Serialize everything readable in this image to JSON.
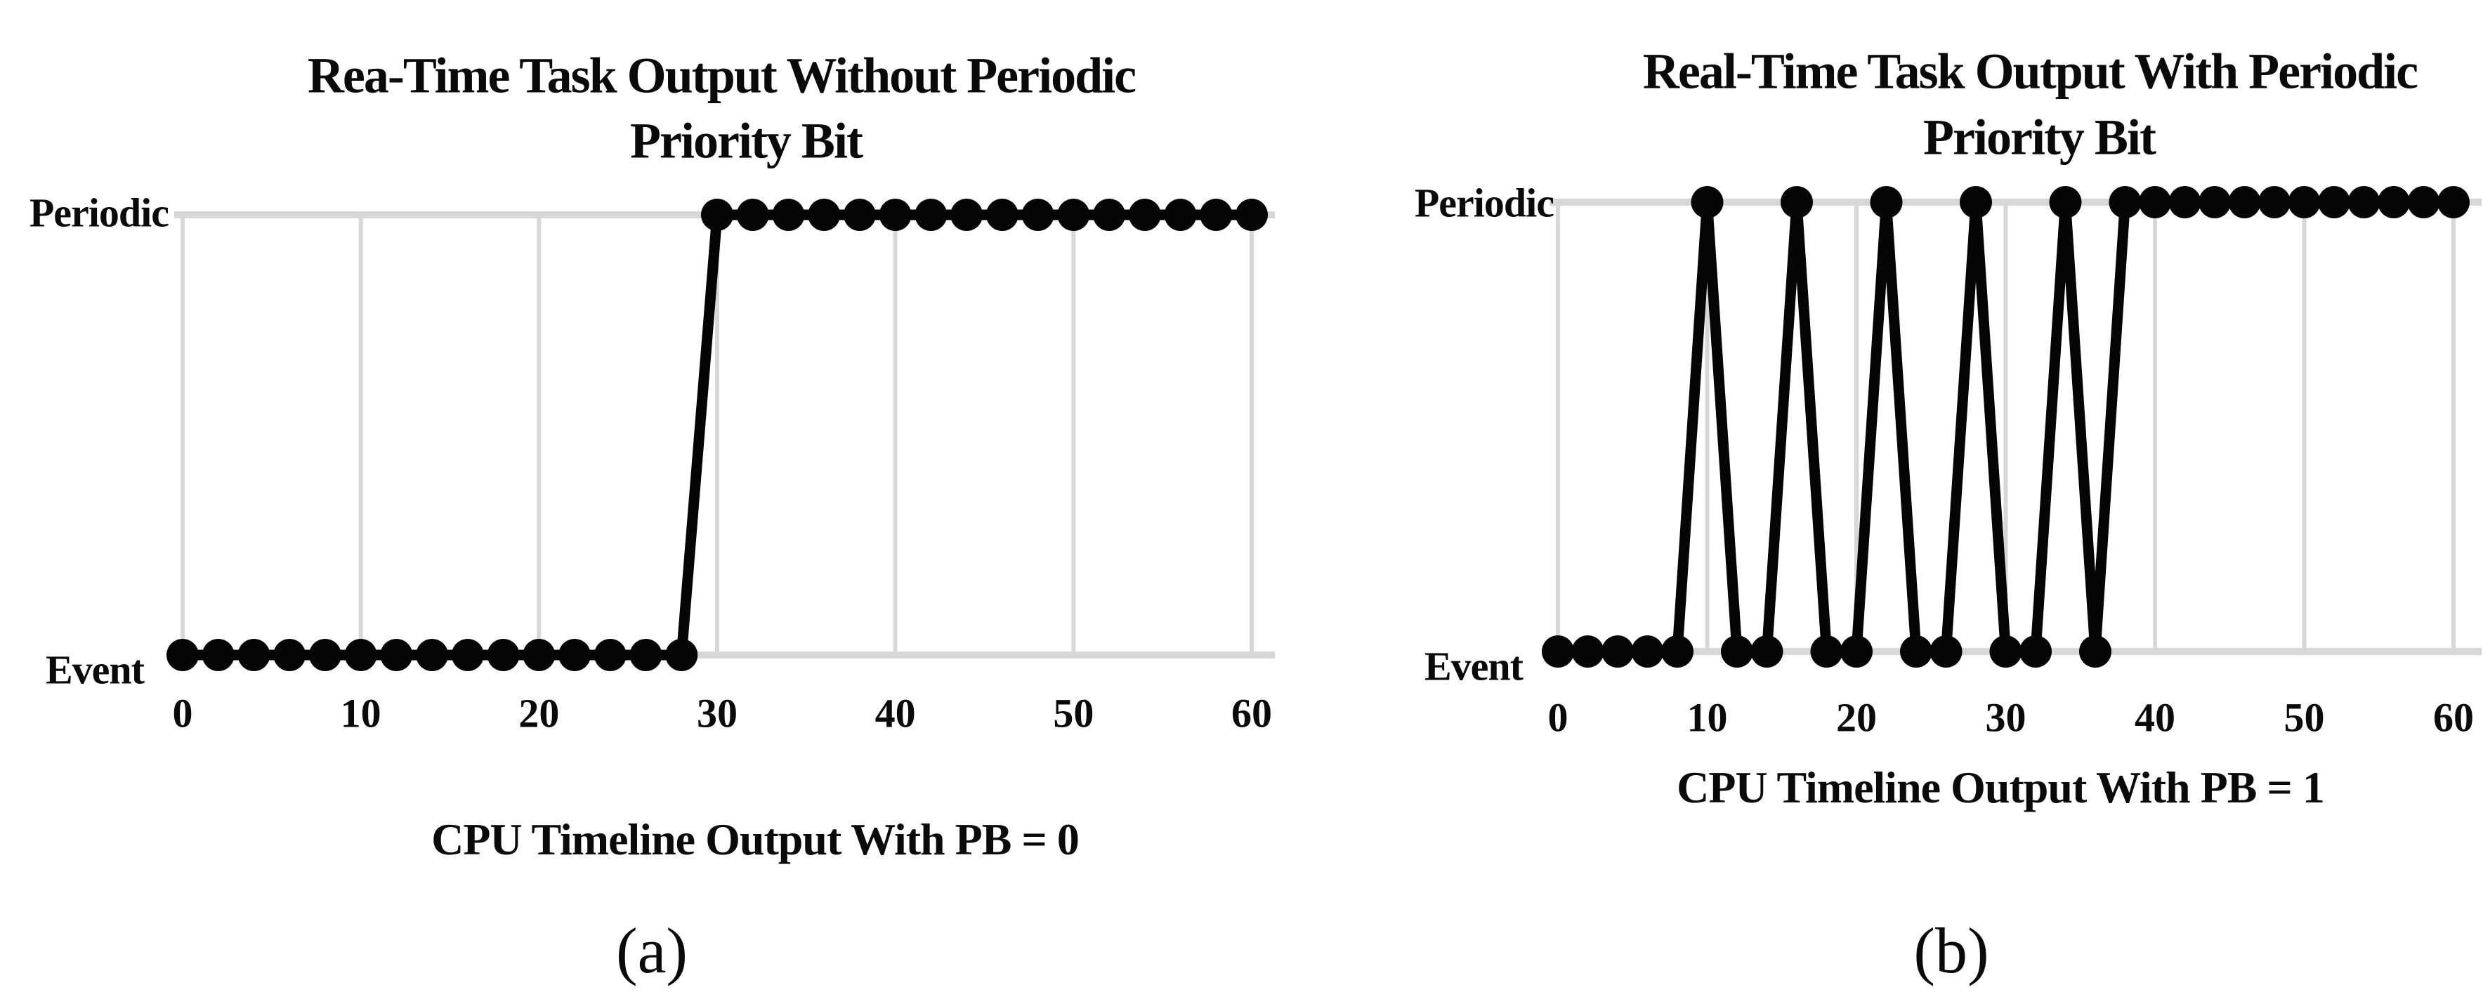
{
  "chart_data": [
    {
      "type": "line",
      "panel_label": "(a)",
      "title_line1": "Rea-Time Task Output Without Periodic",
      "title_line2": "Priority Bit",
      "caption": "CPU Timeline Output With PB = 0",
      "y_axis_label_top": "Periodic",
      "y_axis_label_bottom": "Event",
      "x_ticks": [
        0,
        10,
        20,
        30,
        40,
        50,
        60
      ],
      "x_range": [
        0,
        60
      ],
      "y_categories": [
        "Event",
        "Periodic"
      ],
      "legend": "none",
      "marker": "filled-circle",
      "grid": {
        "vertical_at_ticks": true,
        "horizontal_at_categories": true
      },
      "colors": {
        "line": "#050505",
        "marker": "#050505",
        "gridline": "#d7d7d7",
        "text": "#0a0a0a"
      },
      "series": [
        {
          "name": "CPU timeline output, PB = 0",
          "points": [
            [
              0,
              "Event"
            ],
            [
              2,
              "Event"
            ],
            [
              4,
              "Event"
            ],
            [
              6,
              "Event"
            ],
            [
              8,
              "Event"
            ],
            [
              10,
              "Event"
            ],
            [
              12,
              "Event"
            ],
            [
              14,
              "Event"
            ],
            [
              16,
              "Event"
            ],
            [
              18,
              "Event"
            ],
            [
              20,
              "Event"
            ],
            [
              22,
              "Event"
            ],
            [
              24,
              "Event"
            ],
            [
              26,
              "Event"
            ],
            [
              28,
              "Event"
            ],
            [
              30,
              "Periodic"
            ],
            [
              32,
              "Periodic"
            ],
            [
              34,
              "Periodic"
            ],
            [
              36,
              "Periodic"
            ],
            [
              38,
              "Periodic"
            ],
            [
              40,
              "Periodic"
            ],
            [
              42,
              "Periodic"
            ],
            [
              44,
              "Periodic"
            ],
            [
              46,
              "Periodic"
            ],
            [
              48,
              "Periodic"
            ],
            [
              50,
              "Periodic"
            ],
            [
              52,
              "Periodic"
            ],
            [
              54,
              "Periodic"
            ],
            [
              56,
              "Periodic"
            ],
            [
              58,
              "Periodic"
            ],
            [
              60,
              "Periodic"
            ]
          ]
        }
      ]
    },
    {
      "type": "line",
      "panel_label": "(b)",
      "title_line1": "Real-Time Task Output With Periodic",
      "title_line2": "Priority Bit",
      "caption": "CPU Timeline Output With PB = 1",
      "y_axis_label_top": "Periodic",
      "y_axis_label_bottom": "Event",
      "x_ticks": [
        0,
        10,
        20,
        30,
        40,
        50,
        60
      ],
      "x_range": [
        0,
        60
      ],
      "y_categories": [
        "Event",
        "Periodic"
      ],
      "legend": "none",
      "marker": "filled-circle",
      "grid": {
        "vertical_at_ticks": true,
        "horizontal_at_categories": true
      },
      "colors": {
        "line": "#050505",
        "marker": "#050505",
        "gridline": "#d7d7d7",
        "text": "#0a0a0a"
      },
      "series": [
        {
          "name": "CPU timeline output, PB = 1",
          "points": [
            [
              0,
              "Event"
            ],
            [
              2,
              "Event"
            ],
            [
              4,
              "Event"
            ],
            [
              6,
              "Event"
            ],
            [
              8,
              "Event"
            ],
            [
              10,
              "Periodic"
            ],
            [
              12,
              "Event"
            ],
            [
              14,
              "Event"
            ],
            [
              16,
              "Periodic"
            ],
            [
              18,
              "Event"
            ],
            [
              20,
              "Event"
            ],
            [
              22,
              "Periodic"
            ],
            [
              24,
              "Event"
            ],
            [
              26,
              "Event"
            ],
            [
              28,
              "Periodic"
            ],
            [
              30,
              "Event"
            ],
            [
              32,
              "Event"
            ],
            [
              34,
              "Periodic"
            ],
            [
              36,
              "Event"
            ],
            [
              38,
              "Periodic"
            ],
            [
              40,
              "Periodic"
            ],
            [
              42,
              "Periodic"
            ],
            [
              44,
              "Periodic"
            ],
            [
              46,
              "Periodic"
            ],
            [
              48,
              "Periodic"
            ],
            [
              50,
              "Periodic"
            ],
            [
              52,
              "Periodic"
            ],
            [
              54,
              "Periodic"
            ],
            [
              56,
              "Periodic"
            ],
            [
              58,
              "Periodic"
            ],
            [
              60,
              "Periodic"
            ]
          ]
        }
      ]
    }
  ]
}
